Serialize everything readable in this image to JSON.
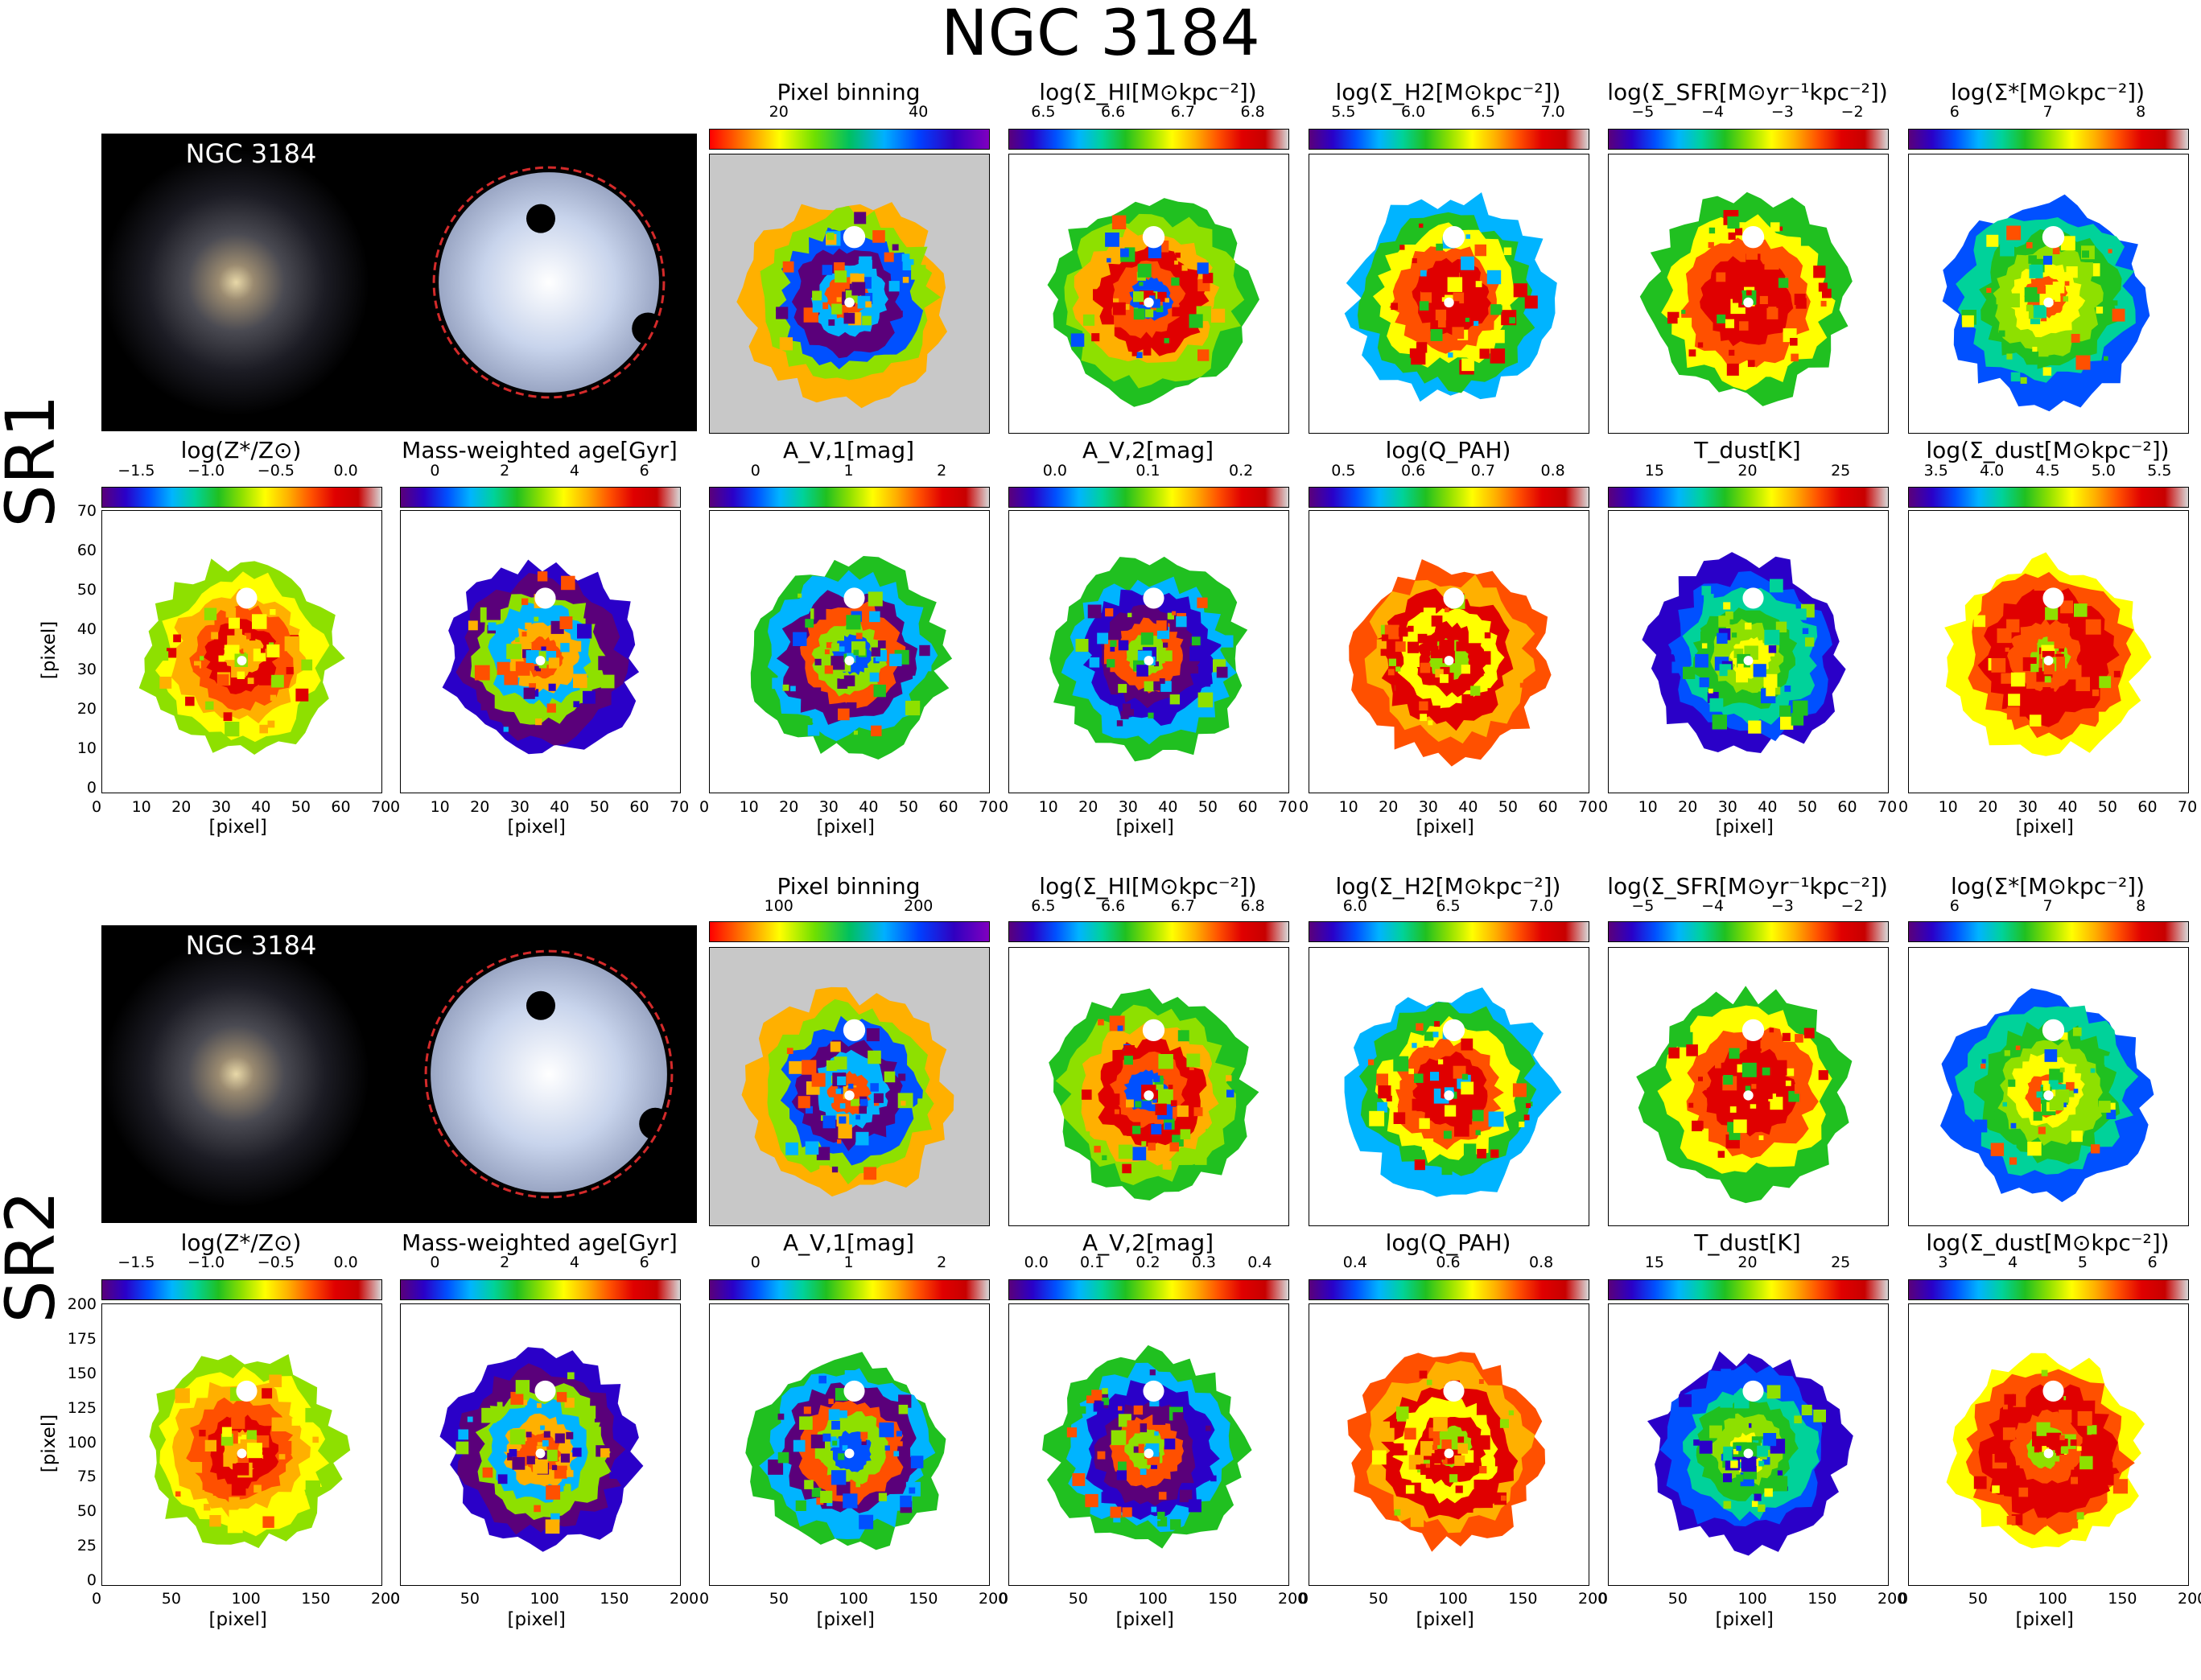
{
  "figure_title": "NGC 3184",
  "galaxy_image_label": "NGC 3184",
  "axis_label": "[pixel]",
  "rows": [
    {
      "name": "SR1",
      "top_titles": [
        "Pixel binning",
        "log(Σ_HI[M⊙kpc⁻²])",
        "log(Σ_H2[M⊙kpc⁻²])",
        "log(Σ_SFR[M⊙yr⁻¹kpc⁻²])",
        "log(Σ*[M⊙kpc⁻²])"
      ],
      "top_ticks": [
        [
          "20",
          "40"
        ],
        [
          "6.5",
          "6.6",
          "6.7",
          "6.8"
        ],
        [
          "5.5",
          "6.0",
          "6.5",
          "7.0"
        ],
        [
          "−5",
          "−4",
          "−3",
          "−2"
        ],
        [
          "6",
          "7",
          "8"
        ]
      ],
      "bottom_titles": [
        "log(Z*/Z⊙)",
        "Mass-weighted age[Gyr]",
        "A_V,1[mag]",
        "A_V,2[mag]",
        "log(Q_PAH)",
        "T_dust[K]",
        "log(Σ_dust[M⊙kpc⁻²])"
      ],
      "bottom_ticks": [
        [
          "−1.5",
          "−1.0",
          "−0.5",
          "0.0"
        ],
        [
          "0",
          "2",
          "4",
          "6"
        ],
        [
          "0",
          "1",
          "2"
        ],
        [
          "0.0",
          "0.1",
          "0.2"
        ],
        [
          "0.5",
          "0.6",
          "0.7",
          "0.8"
        ],
        [
          "15",
          "20",
          "25"
        ],
        [
          "3.5",
          "4.0",
          "4.5",
          "5.0",
          "5.5"
        ]
      ],
      "y_ticks": [
        "70",
        "60",
        "50",
        "40",
        "30",
        "20",
        "10",
        "0"
      ],
      "x_ticks": [
        "0",
        "10",
        "20",
        "30",
        "40",
        "50",
        "60",
        "70"
      ]
    },
    {
      "name": "SR2",
      "top_titles": [
        "Pixel binning",
        "log(Σ_HI[M⊙kpc⁻²])",
        "log(Σ_H2[M⊙kpc⁻²])",
        "log(Σ_SFR[M⊙yr⁻¹kpc⁻²])",
        "log(Σ*[M⊙kpc⁻²])"
      ],
      "top_ticks": [
        [
          "100",
          "200"
        ],
        [
          "6.5",
          "6.6",
          "6.7",
          "6.8"
        ],
        [
          "6.0",
          "6.5",
          "7.0"
        ],
        [
          "−5",
          "−4",
          "−3",
          "−2"
        ],
        [
          "6",
          "7",
          "8"
        ]
      ],
      "bottom_titles": [
        "log(Z*/Z⊙)",
        "Mass-weighted age[Gyr]",
        "A_V,1[mag]",
        "A_V,2[mag]",
        "log(Q_PAH)",
        "T_dust[K]",
        "log(Σ_dust[M⊙kpc⁻²])"
      ],
      "bottom_ticks": [
        [
          "−1.5",
          "−1.0",
          "−0.5",
          "0.0"
        ],
        [
          "0",
          "2",
          "4",
          "6"
        ],
        [
          "0",
          "1",
          "2"
        ],
        [
          "0.0",
          "0.1",
          "0.2",
          "0.3",
          "0.4"
        ],
        [
          "0.4",
          "0.6",
          "0.8"
        ],
        [
          "15",
          "20",
          "25"
        ],
        [
          "3",
          "4",
          "5",
          "6"
        ]
      ],
      "y_ticks": [
        "200",
        "175",
        "150",
        "125",
        "100",
        "75",
        "50",
        "25",
        "0"
      ],
      "x_ticks": [
        "0",
        "50",
        "100",
        "150",
        "200"
      ]
    }
  ],
  "colors": {
    "background": "#ffffff",
    "photo_bg": "#000000",
    "mask_grey": "#c8c8c8",
    "aperture_circle": "#d42a2a"
  }
}
